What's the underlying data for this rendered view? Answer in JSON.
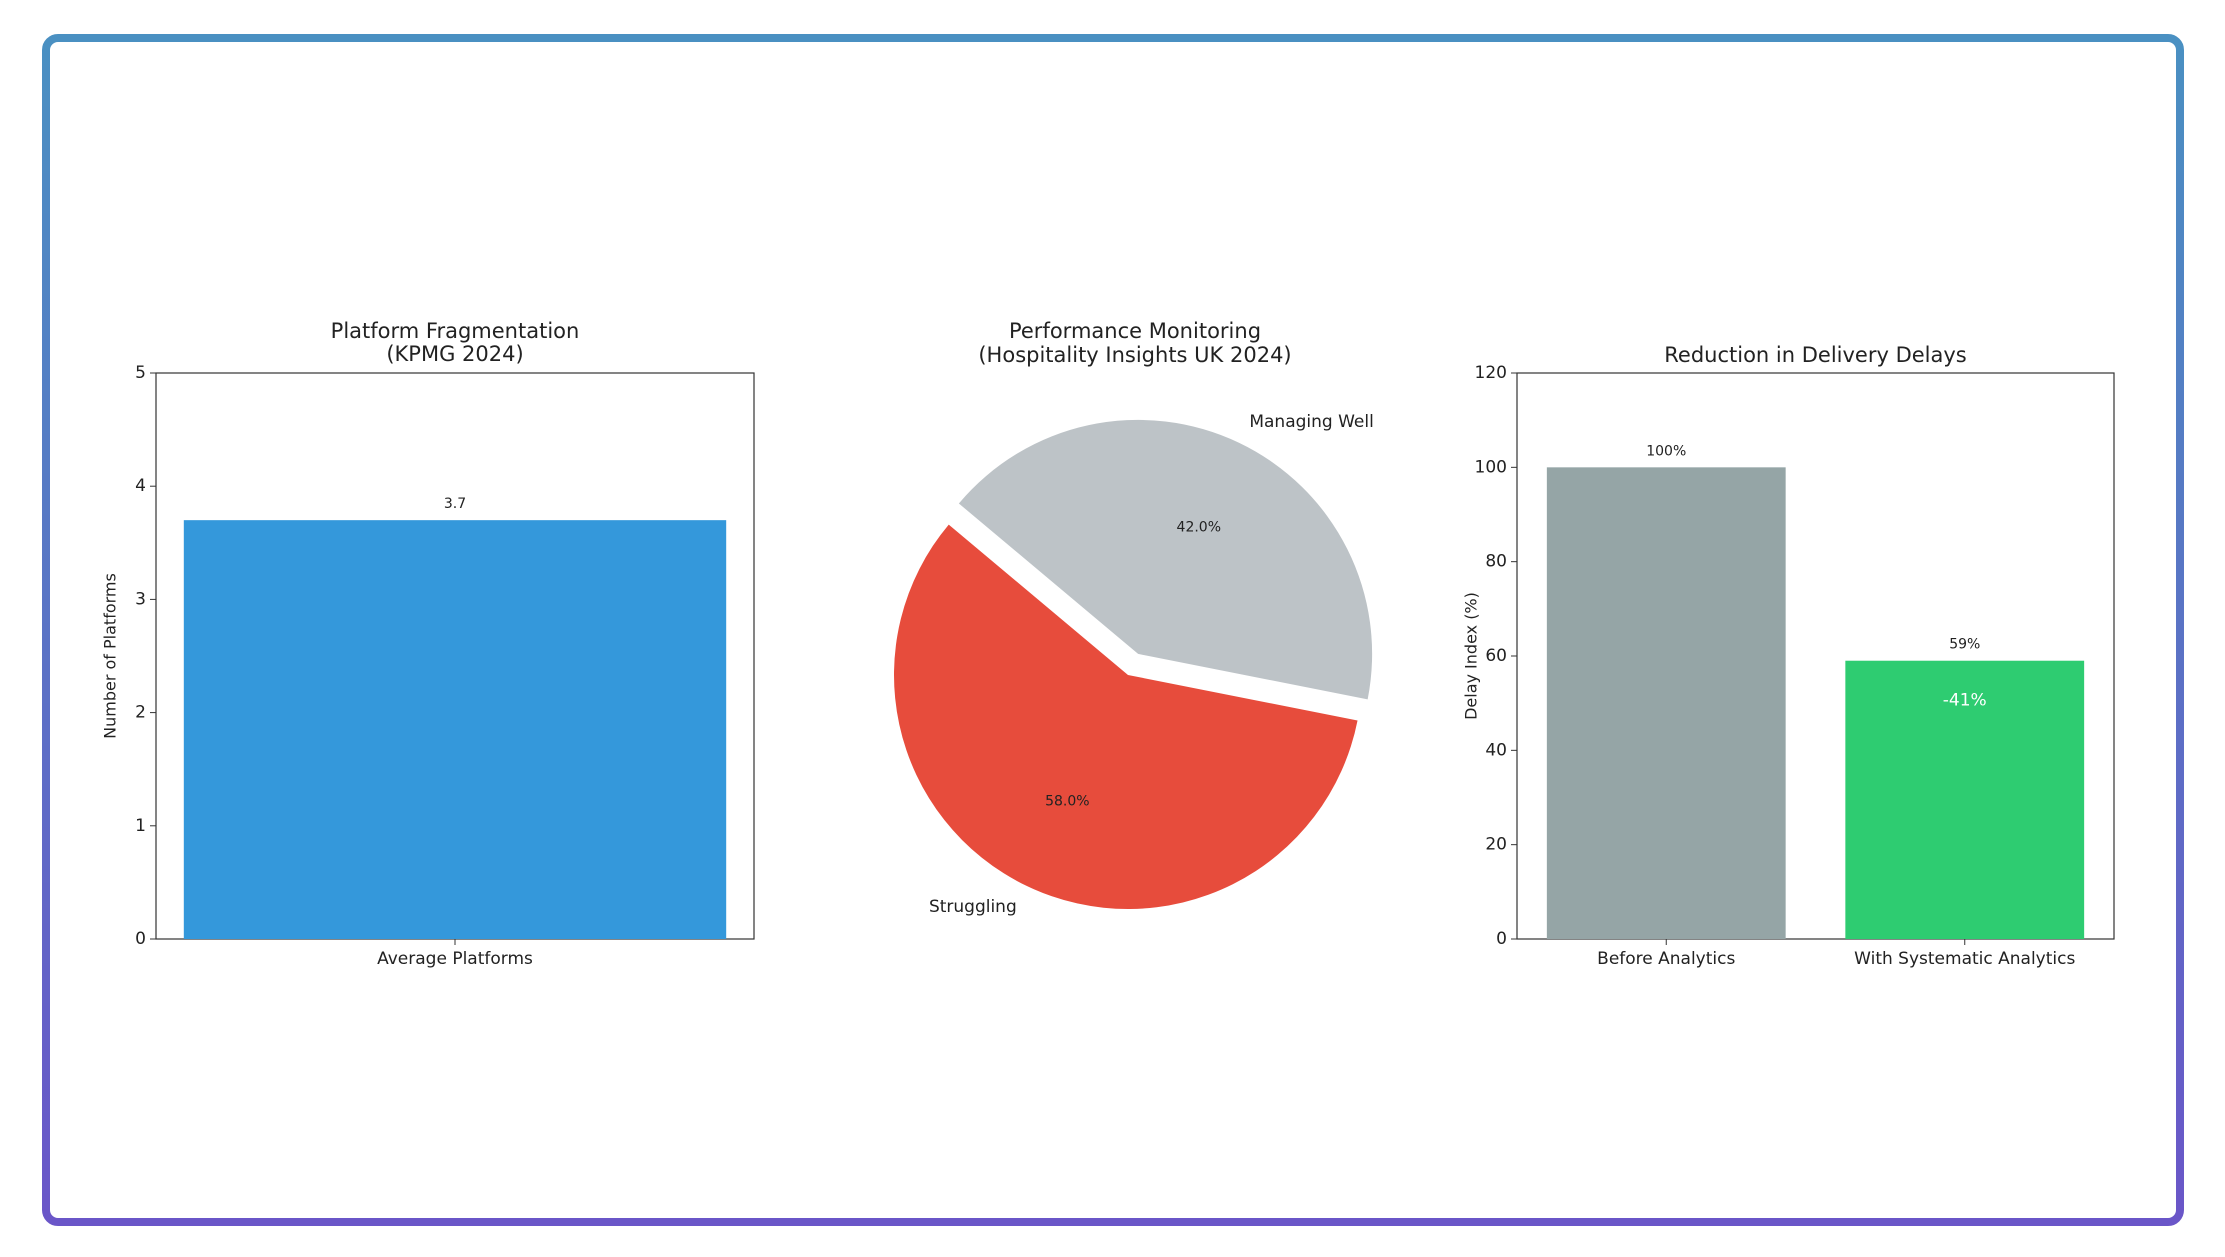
{
  "chart_data": [
    {
      "type": "bar",
      "title": "Platform Fragmentation",
      "subtitle": "(KPMG 2024)",
      "categories": [
        "Average Platforms"
      ],
      "values": [
        3.7
      ],
      "color": "#3498db",
      "ylabel": "Number of Platforms",
      "ylim": [
        0,
        5
      ],
      "yticks": [
        0,
        1,
        2,
        3,
        4,
        5
      ]
    },
    {
      "type": "pie",
      "title": "Performance Monitoring",
      "subtitle": "(Hospitality Insights UK 2024)",
      "categories": [
        "Struggling",
        "Managing Well"
      ],
      "values": [
        58,
        42
      ],
      "value_labels": [
        "58.0%",
        "42.0%"
      ],
      "colors": [
        "#e74c3c",
        "#bdc3c7"
      ]
    },
    {
      "type": "bar",
      "title": "Reduction in Delivery Delays",
      "categories": [
        "Before Analytics",
        "With Systematic Analytics"
      ],
      "values": [
        100,
        59
      ],
      "value_labels": [
        "100%",
        "59%"
      ],
      "colors": [
        "#95a5a6",
        "#2ecc71"
      ],
      "ylabel": "Delay Index (%)",
      "ylim": [
        0,
        120
      ],
      "yticks": [
        0,
        20,
        40,
        60,
        80,
        100,
        120
      ],
      "annotation": "-41%"
    }
  ]
}
